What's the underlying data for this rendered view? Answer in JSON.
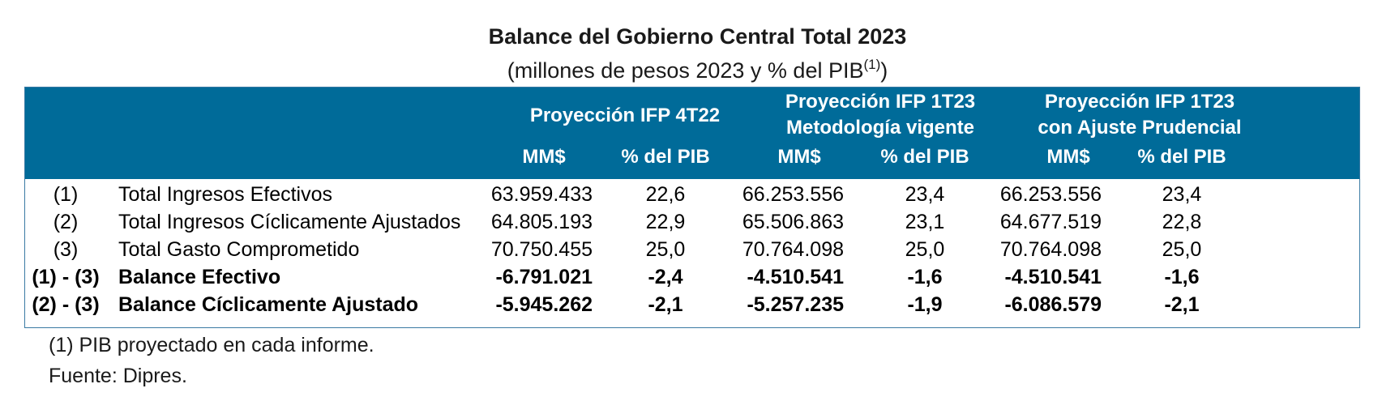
{
  "title": "Balance del Gobierno Central Total 2023",
  "subtitle": {
    "text": "(millones de pesos 2023 y % del PIB",
    "sup": "(1)",
    "close": ")"
  },
  "header": {
    "groups": [
      {
        "line1": "Proyección IFP 4T22",
        "line2": ""
      },
      {
        "line1": "Proyección IFP 1T23",
        "line2": "Metodología vigente"
      },
      {
        "line1": "Proyección IFP 1T23",
        "line2": "con Ajuste Prudencial"
      }
    ],
    "subcols": [
      "MM$",
      "% del PIB",
      "MM$",
      "% del PIB",
      "MM$",
      "% del PIB"
    ]
  },
  "rows": [
    {
      "id": "(1)",
      "label": "Total Ingresos Efectivos",
      "bold": false,
      "values": [
        "63.959.433",
        "22,6",
        "66.253.556",
        "23,4",
        "66.253.556",
        "23,4"
      ]
    },
    {
      "id": "(2)",
      "label": "Total Ingresos Cíclicamente Ajustados",
      "bold": false,
      "values": [
        "64.805.193",
        "22,9",
        "65.506.863",
        "23,1",
        "64.677.519",
        "22,8"
      ]
    },
    {
      "id": "(3)",
      "label": "Total Gasto Comprometido",
      "bold": false,
      "values": [
        "70.750.455",
        "25,0",
        "70.764.098",
        "25,0",
        "70.764.098",
        "25,0"
      ]
    },
    {
      "id": "(1) - (3)",
      "label": "Balance Efectivo",
      "bold": true,
      "values": [
        "-6.791.021",
        "-2,4",
        "-4.510.541",
        "-1,6",
        "-4.510.541",
        "-1,6"
      ]
    },
    {
      "id": "(2) - (3)",
      "label": "Balance Cíclicamente Ajustado",
      "bold": true,
      "values": [
        "-5.945.262",
        "-2,1",
        "-5.257.235",
        "-1,9",
        "-6.086.579",
        "-2,1"
      ]
    }
  ],
  "notes": [
    "(1) PIB proyectado en cada informe.",
    "Fuente: Dipres."
  ],
  "colors": {
    "header_bg": "#006b99",
    "header_text": "#ffffff",
    "border": "#3a7aa3"
  }
}
